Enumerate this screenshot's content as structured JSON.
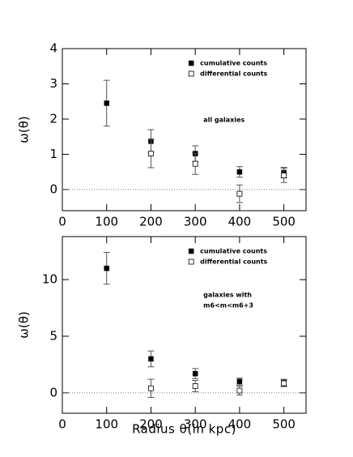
{
  "chart_data": [
    {
      "type": "scatter",
      "ylabel": "ω(θ)",
      "annotation": [
        "all galaxies"
      ],
      "x": [
        100,
        200,
        300,
        400,
        500
      ],
      "xlim": [
        0,
        550
      ],
      "xticks": [
        0,
        100,
        200,
        300,
        400,
        500
      ],
      "ylim": [
        -0.6,
        4
      ],
      "yticks": [
        0,
        1,
        2,
        3,
        4
      ],
      "zero_line": true,
      "series": [
        {
          "name": "cumulative counts",
          "color": "#000000",
          "marker": "filled",
          "values": [
            2.45,
            1.37,
            1.02,
            0.5,
            0.48
          ],
          "errors": [
            0.65,
            0.33,
            0.22,
            0.15,
            0.15
          ]
        },
        {
          "name": "differential counts",
          "color": "#000000",
          "marker": "open",
          "values": [
            null,
            1.02,
            0.73,
            -0.12,
            0.4
          ],
          "errors": [
            null,
            0.4,
            0.3,
            0.25,
            0.2
          ]
        }
      ]
    },
    {
      "type": "scatter",
      "ylabel": "ω(θ)",
      "xlabel": "Radius θ(in kpc)",
      "annotation": [
        "galaxies with",
        "m6<m<m6+3"
      ],
      "x": [
        100,
        200,
        300,
        400,
        500
      ],
      "xlim": [
        0,
        550
      ],
      "xticks": [
        0,
        100,
        200,
        300,
        400,
        500
      ],
      "ylim": [
        -1.8,
        13.8
      ],
      "yticks": [
        0,
        5,
        10
      ],
      "zero_line": true,
      "series": [
        {
          "name": "cumulative counts",
          "color": "#000000",
          "marker": "filled",
          "values": [
            11,
            3.0,
            1.7,
            1.0,
            0.9
          ],
          "errors": [
            1.4,
            0.7,
            0.45,
            0.3,
            0.3
          ]
        },
        {
          "name": "differential counts",
          "color": "#000000",
          "marker": "open",
          "values": [
            null,
            0.4,
            0.6,
            0.2,
            0.85
          ],
          "errors": [
            null,
            0.8,
            0.5,
            0.4,
            0.3
          ]
        }
      ]
    }
  ]
}
